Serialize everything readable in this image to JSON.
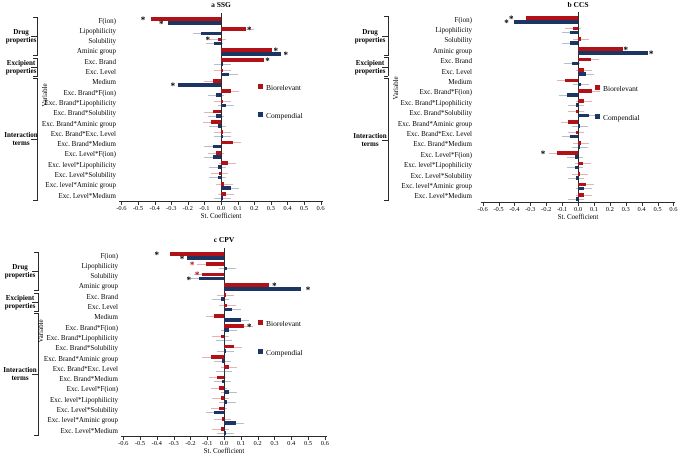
{
  "figure": {
    "background": "#ffffff",
    "series_colors": {
      "Biorelevant": "#b01218",
      "Compendial": "#1c3562"
    },
    "star_colors": {
      "black": "#000000",
      "red": "#b01218"
    }
  },
  "categories": [
    "F(ion)",
    "Lipophilicity",
    "Solubility",
    "Aminic group",
    "Exc. Brand",
    "Exc. Level",
    "Medium",
    "Exc. Brand*F(ion)",
    "Exc. Brand*Lipophilicity",
    "Exc. Brand*Solubility",
    "Exc. Brand*Aminic group",
    "Exc. Brand*Exc. Level",
    "Exc. Brand*Medium",
    "Exc. Level*F(ion)",
    "Exc. level*Lipophilicity",
    "Exc. Level*Solubility",
    "Exc. level*Aminic group",
    "Exc. Level*Medium"
  ],
  "groups": [
    {
      "label": "Drug properties",
      "start": 0,
      "end": 3
    },
    {
      "label": "Excipient properties",
      "start": 4,
      "end": 5
    },
    {
      "label": "Interaction terms",
      "start": 6,
      "end": 17
    }
  ],
  "y_axis_label": "Variable",
  "x_axis_label": "St. Coefficient",
  "x_tick_labels": [
    "-0.6",
    "-0.5",
    "-0.4",
    "-0.3",
    "-0.2",
    "-0.1",
    "0.0",
    "0.1",
    "0.2",
    "0.3",
    "0.4",
    "0.5",
    "0.6"
  ],
  "x_ticks": [
    -0.6,
    -0.5,
    -0.4,
    -0.3,
    -0.2,
    -0.1,
    0.0,
    0.1,
    0.2,
    0.3,
    0.4,
    0.5,
    0.6
  ],
  "legend": [
    {
      "label": "Biorelevant",
      "color": "#b01218"
    },
    {
      "label": "Compendial",
      "color": "#1c3562"
    }
  ],
  "chart_data": [
    {
      "type": "bar",
      "orientation": "horizontal",
      "key": "ssg",
      "title": "a SSG",
      "xlabel": "St. Coefficient",
      "ylabel": "Variable",
      "xlim": [
        -0.6,
        0.6
      ],
      "categories": [
        "F(ion)",
        "Lipophilicity",
        "Solubility",
        "Aminic group",
        "Exc. Brand",
        "Exc. Level",
        "Medium",
        "Exc. Brand*F(ion)",
        "Exc. Brand*Lipophilicity",
        "Exc. Brand*Solubility",
        "Exc. Brand*Aminic group",
        "Exc. Brand*Exc. Level",
        "Exc. Brand*Medium",
        "Exc. Level*F(ion)",
        "Exc. level*Lipophilicity",
        "Exc. Level*Solubility",
        "Exc. level*Aminic group",
        "Exc. Level*Medium"
      ],
      "series": [
        {
          "name": "Biorelevant",
          "values": [
            -0.42,
            0.15,
            -0.02,
            0.31,
            0.26,
            0.01,
            -0.05,
            0.06,
            0.01,
            -0.05,
            -0.06,
            0.01,
            0.07,
            -0.03,
            0.04,
            -0.01,
            0.02,
            0.03
          ]
        },
        {
          "name": "Compendial",
          "values": [
            -0.32,
            -0.12,
            -0.04,
            0.36,
            0.01,
            0.05,
            -0.26,
            -0.03,
            0.03,
            -0.03,
            -0.02,
            0.01,
            -0.05,
            -0.05,
            -0.02,
            -0.02,
            0.06,
            0.01
          ]
        }
      ],
      "significance_stars": [
        {
          "category": "F(ion)",
          "series": "Biorelevant",
          "x": -0.47,
          "color": "black"
        },
        {
          "category": "F(ion)",
          "series": "Compendial",
          "x": -0.36,
          "color": "black"
        },
        {
          "category": "Lipophilicity",
          "series": "Biorelevant",
          "x": 0.17,
          "color": "black"
        },
        {
          "category": "Solubility",
          "series": "Biorelevant",
          "x": -0.08,
          "color": "black"
        },
        {
          "category": "Aminic group",
          "series": "Biorelevant",
          "x": 0.33,
          "color": "black"
        },
        {
          "category": "Aminic group",
          "series": "Compendial",
          "x": 0.39,
          "color": "black"
        },
        {
          "category": "Exc. Brand",
          "series": "Biorelevant",
          "x": 0.28,
          "color": "black"
        },
        {
          "category": "Medium",
          "series": "Compendial",
          "x": -0.29,
          "color": "black"
        }
      ]
    },
    {
      "type": "bar",
      "orientation": "horizontal",
      "key": "ccs",
      "title": "b CCS",
      "xlabel": "St. Coefficient",
      "ylabel": "Variable",
      "xlim": [
        -0.6,
        0.6
      ],
      "categories": [
        "F(ion)",
        "Lipophilicity",
        "Solubility",
        "Aminic group",
        "Exc. Brand",
        "Exc. Level",
        "Medium",
        "Exc. Brand*F(ion)",
        "Exc. Brand*Lipophilicity",
        "Exc. Brand*Solubility",
        "Exc. Brand*Aminic group",
        "Exc. Brand*Exc. Level",
        "Exc. Brand*Medium",
        "Exc. Level*F(ion)",
        "Exc. level*Lipophilicity",
        "Exc. Level*Solubility",
        "Exc. level*Aminic group",
        "Exc. Level*Medium"
      ],
      "series": [
        {
          "name": "Biorelevant",
          "values": [
            -0.33,
            -0.03,
            0.02,
            0.28,
            0.08,
            0.04,
            -0.08,
            0.09,
            0.04,
            -0.01,
            -0.06,
            -0.01,
            0.02,
            -0.13,
            0.03,
            0.01,
            0.05,
            0.04
          ]
        },
        {
          "name": "Compendial",
          "values": [
            -0.4,
            -0.05,
            -0.05,
            0.44,
            -0.04,
            0.05,
            0.02,
            -0.07,
            -0.01,
            0.07,
            0.01,
            -0.05,
            0.01,
            -0.02,
            -0.02,
            -0.01,
            0.04,
            -0.01
          ]
        }
      ],
      "significance_stars": [
        {
          "category": "F(ion)",
          "series": "Biorelevant",
          "x": -0.42,
          "color": "black"
        },
        {
          "category": "F(ion)",
          "series": "Compendial",
          "x": -0.45,
          "color": "black"
        },
        {
          "category": "Aminic group",
          "series": "Biorelevant",
          "x": 0.3,
          "color": "black"
        },
        {
          "category": "Aminic group",
          "series": "Compendial",
          "x": 0.46,
          "color": "black"
        },
        {
          "category": "Exc. Level*F(ion)",
          "series": "Biorelevant",
          "x": -0.22,
          "color": "black"
        }
      ]
    },
    {
      "type": "bar",
      "orientation": "horizontal",
      "key": "cpv",
      "title": "c CPV",
      "xlabel": "St. Coefficient",
      "ylabel": "Variable",
      "xlim": [
        -0.6,
        0.6
      ],
      "categories": [
        "F(ion)",
        "Lipophilicity",
        "Solubility",
        "Aminic group",
        "Exc. Brand",
        "Exc. Level",
        "Medium",
        "Exc. Brand*F(ion)",
        "Exc. Brand*Lipophilicity",
        "Exc. Brand*Solubility",
        "Exc. Brand*Aminic group",
        "Exc. Brand*Exc. Level",
        "Exc. Brand*Medium",
        "Exc. Level*F(ion)",
        "Exc. level*Lipophilicity",
        "Exc. Level*Solubility",
        "Exc. level*Aminic group",
        "Exc. Level*Medium"
      ],
      "series": [
        {
          "name": "Biorelevant",
          "values": [
            -0.32,
            -0.11,
            -0.13,
            0.27,
            0.01,
            0.02,
            -0.06,
            0.12,
            -0.02,
            0.06,
            -0.08,
            0.03,
            -0.04,
            -0.03,
            -0.02,
            -0.03,
            -0.01,
            -0.02
          ]
        },
        {
          "name": "Compendial",
          "values": [
            -0.22,
            0.02,
            -0.15,
            0.46,
            -0.02,
            0.05,
            0.1,
            0.03,
            0.0,
            0.01,
            -0.01,
            0.0,
            -0.01,
            0.03,
            0.02,
            -0.06,
            0.07,
            0.01
          ]
        }
      ],
      "significance_stars": [
        {
          "category": "F(ion)",
          "series": "Biorelevant",
          "x": -0.4,
          "color": "black"
        },
        {
          "category": "F(ion)",
          "series": "Compendial",
          "x": -0.25,
          "color": "black"
        },
        {
          "category": "Lipophilicity",
          "series": "Biorelevant",
          "x": -0.19,
          "color": "red"
        },
        {
          "category": "Solubility",
          "series": "Biorelevant",
          "x": -0.16,
          "color": "red"
        },
        {
          "category": "Solubility",
          "series": "Compendial",
          "x": -0.21,
          "color": "black"
        },
        {
          "category": "Aminic group",
          "series": "Biorelevant",
          "x": 0.3,
          "color": "black"
        },
        {
          "category": "Aminic group",
          "series": "Compendial",
          "x": 0.5,
          "color": "black"
        },
        {
          "category": "Exc. Brand*F(ion)",
          "series": "Biorelevant",
          "x": 0.15,
          "color": "black"
        }
      ]
    }
  ]
}
